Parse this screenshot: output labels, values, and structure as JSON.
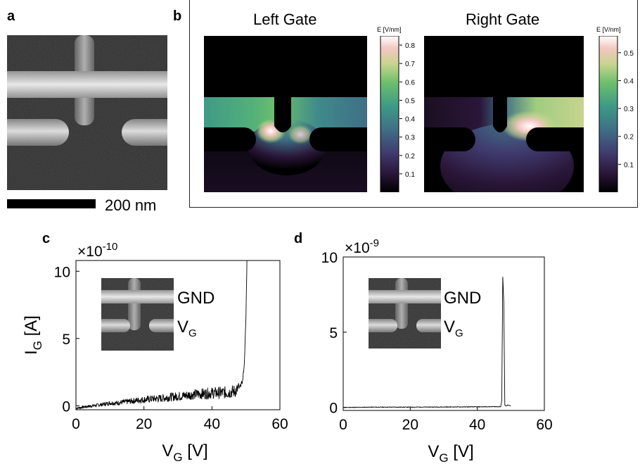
{
  "colors": {
    "trace": "#000000",
    "colormap": [
      "#000000",
      "#2a1638",
      "#403a6e",
      "#3f6f86",
      "#3e9a86",
      "#6cbf6c",
      "#c8d48e",
      "#f3c7c0",
      "#ffffff"
    ]
  },
  "icons": {
    "sem_images": "sem-micrograph-image"
  },
  "panel_a": {
    "label": "a",
    "scalebar_label": "200 nm"
  },
  "panel_b": {
    "label": "b",
    "left": {
      "title": "Left Gate",
      "colorbar_title": "E [V/nm]",
      "colorbar_ticks": [
        "0.8",
        "0.7",
        "0.6",
        "0.5",
        "0.4",
        "0.3",
        "0.2",
        "0.1"
      ],
      "range": [
        0,
        0.85
      ]
    },
    "right": {
      "title": "Right Gate",
      "colorbar_title": "E [V/nm]",
      "colorbar_ticks": [
        "0.5",
        "0.4",
        "0.3",
        "0.2",
        "0.1"
      ],
      "range": [
        0,
        0.56
      ]
    }
  },
  "panel_c": {
    "label": "c",
    "multiplier_base": "×10",
    "multiplier_exp": "-10",
    "inset_labels": {
      "top": "GND",
      "bottom_main": "V",
      "bottom_sub": "G"
    }
  },
  "panel_d": {
    "label": "d",
    "multiplier_base": "×10",
    "multiplier_exp": "-9",
    "inset_labels": {
      "top": "GND",
      "bottom_main": "V",
      "bottom_sub": "G"
    }
  },
  "chart_data": [
    {
      "type": "line",
      "panel": "c",
      "xlabel": "V_G [V]",
      "ylabel": "I_G [A]",
      "xlim": [
        0,
        60
      ],
      "ylim": [
        -0.3,
        10.8
      ],
      "xticks": [
        "0",
        "20",
        "40",
        "60"
      ],
      "yticks": [
        "0",
        "5",
        "10"
      ],
      "grid": false,
      "series": [
        {
          "x": [
            0,
            2,
            5,
            8,
            10,
            12,
            15,
            18,
            20,
            22,
            25,
            28,
            30,
            32,
            35,
            38,
            40,
            42,
            45,
            47,
            48,
            49,
            49.5,
            50,
            50.3
          ],
          "y": [
            -0.2,
            -0.1,
            0.0,
            0.1,
            0.2,
            0.2,
            0.3,
            0.4,
            0.45,
            0.5,
            0.55,
            0.65,
            0.7,
            0.75,
            0.85,
            0.9,
            0.95,
            0.95,
            1.0,
            1.1,
            1.3,
            1.8,
            3.0,
            6.5,
            10.8
          ]
        }
      ]
    },
    {
      "type": "line",
      "panel": "d",
      "xlabel": "V_G [V]",
      "ylabel": "I_G [A]",
      "xlim": [
        0,
        60
      ],
      "ylim": [
        -0.2,
        10
      ],
      "xticks": [
        "0",
        "20",
        "40",
        "60"
      ],
      "yticks": [
        "0",
        "5",
        "10"
      ],
      "grid": false,
      "series": [
        {
          "x": [
            0,
            10,
            20,
            30,
            40,
            45,
            47,
            47.3,
            47.6,
            47.9,
            48.2,
            48.5,
            49,
            50
          ],
          "y": [
            0.0,
            0.02,
            0.02,
            0.03,
            0.04,
            0.05,
            0.05,
            0.5,
            8.7,
            7.0,
            0.2,
            0.1,
            0.15,
            0.1
          ]
        }
      ]
    }
  ]
}
